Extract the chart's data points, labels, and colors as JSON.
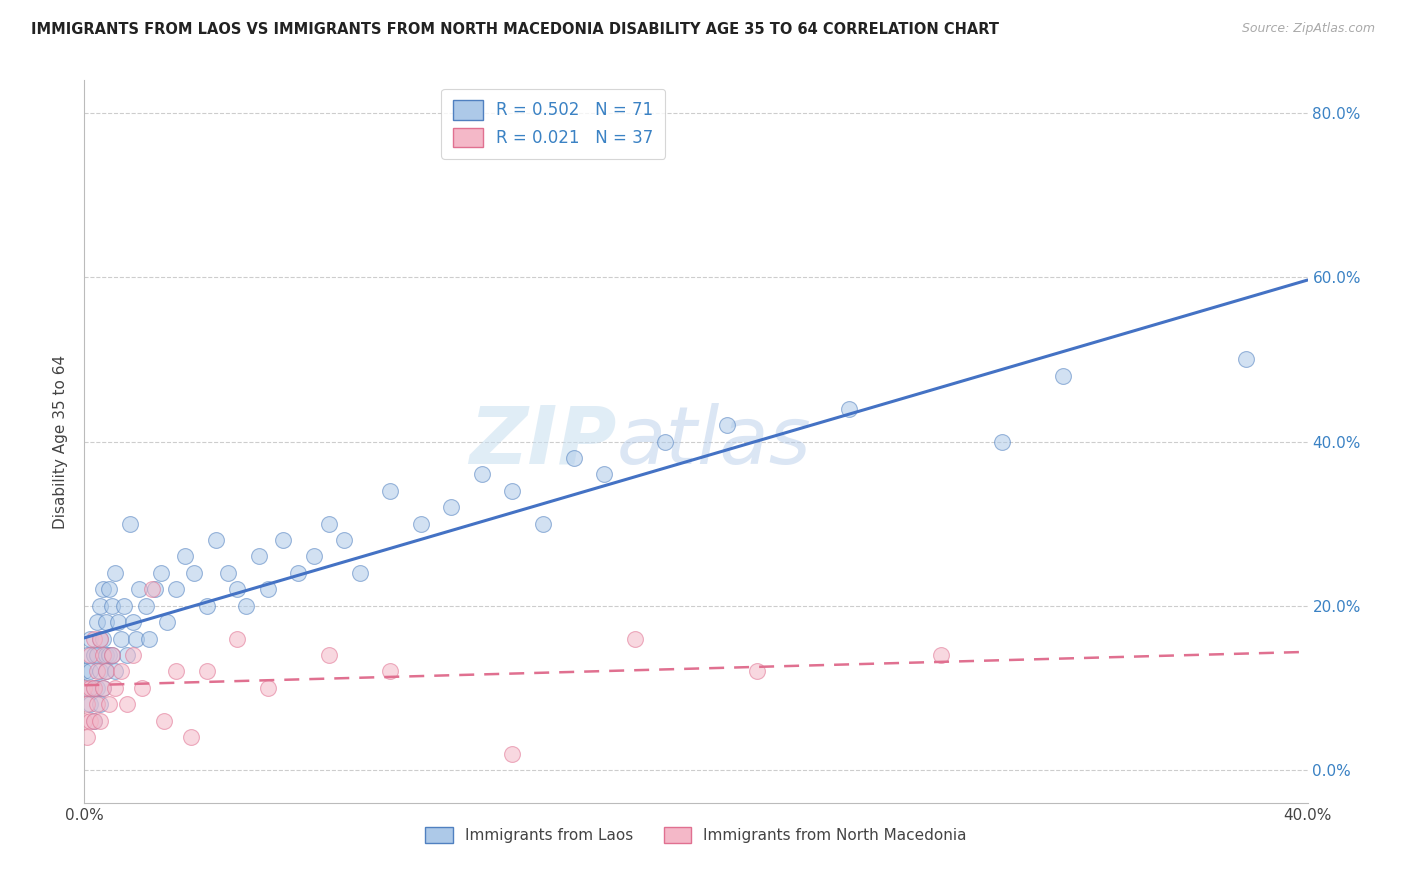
{
  "title": "IMMIGRANTS FROM LAOS VS IMMIGRANTS FROM NORTH MACEDONIA DISABILITY AGE 35 TO 64 CORRELATION CHART",
  "source": "Source: ZipAtlas.com",
  "ylabel": "Disability Age 35 to 64",
  "x_min": 0.0,
  "x_max": 0.4,
  "y_min": -0.04,
  "y_max": 0.84,
  "y_ticks": [
    0.0,
    0.2,
    0.4,
    0.6,
    0.8
  ],
  "y_tick_labels_right": [
    "0.0%",
    "20.0%",
    "40.0%",
    "60.0%",
    "80.0%"
  ],
  "grid_color": "#c8c8c8",
  "background_color": "#ffffff",
  "laos_fill_color": "#adc9e8",
  "laos_edge_color": "#5080c0",
  "laos_line_color": "#4472c4",
  "north_mac_fill_color": "#f4b8c8",
  "north_mac_edge_color": "#e07090",
  "north_mac_line_color": "#e07090",
  "R_laos": 0.502,
  "N_laos": 71,
  "R_north_mac": 0.021,
  "N_north_mac": 37,
  "watermark_text": "ZIP",
  "watermark_text2": "atlas",
  "laos_x": [
    0.0,
    0.001,
    0.001,
    0.002,
    0.002,
    0.002,
    0.003,
    0.003,
    0.003,
    0.004,
    0.004,
    0.004,
    0.005,
    0.005,
    0.005,
    0.005,
    0.006,
    0.006,
    0.006,
    0.007,
    0.007,
    0.007,
    0.008,
    0.008,
    0.009,
    0.009,
    0.01,
    0.01,
    0.011,
    0.012,
    0.013,
    0.014,
    0.015,
    0.016,
    0.017,
    0.018,
    0.02,
    0.021,
    0.023,
    0.025,
    0.027,
    0.03,
    0.033,
    0.036,
    0.04,
    0.043,
    0.047,
    0.05,
    0.053,
    0.057,
    0.06,
    0.065,
    0.07,
    0.075,
    0.08,
    0.085,
    0.09,
    0.1,
    0.11,
    0.12,
    0.13,
    0.14,
    0.15,
    0.16,
    0.17,
    0.19,
    0.21,
    0.25,
    0.3,
    0.32,
    0.38
  ],
  "laos_y": [
    0.12,
    0.1,
    0.14,
    0.08,
    0.12,
    0.16,
    0.06,
    0.1,
    0.14,
    0.1,
    0.14,
    0.18,
    0.08,
    0.12,
    0.16,
    0.2,
    0.1,
    0.16,
    0.22,
    0.12,
    0.14,
    0.18,
    0.14,
    0.22,
    0.14,
    0.2,
    0.12,
    0.24,
    0.18,
    0.16,
    0.2,
    0.14,
    0.3,
    0.18,
    0.16,
    0.22,
    0.2,
    0.16,
    0.22,
    0.24,
    0.18,
    0.22,
    0.26,
    0.24,
    0.2,
    0.28,
    0.24,
    0.22,
    0.2,
    0.26,
    0.22,
    0.28,
    0.24,
    0.26,
    0.3,
    0.28,
    0.24,
    0.34,
    0.3,
    0.32,
    0.36,
    0.34,
    0.3,
    0.38,
    0.36,
    0.4,
    0.42,
    0.44,
    0.4,
    0.48,
    0.5
  ],
  "north_mac_x": [
    0.0,
    0.0,
    0.001,
    0.001,
    0.002,
    0.002,
    0.002,
    0.003,
    0.003,
    0.003,
    0.004,
    0.004,
    0.005,
    0.005,
    0.006,
    0.006,
    0.007,
    0.008,
    0.009,
    0.01,
    0.012,
    0.014,
    0.016,
    0.019,
    0.022,
    0.026,
    0.03,
    0.035,
    0.04,
    0.05,
    0.06,
    0.08,
    0.1,
    0.14,
    0.18,
    0.22,
    0.28
  ],
  "north_mac_y": [
    0.06,
    0.1,
    0.04,
    0.08,
    0.06,
    0.1,
    0.14,
    0.06,
    0.1,
    0.16,
    0.08,
    0.12,
    0.06,
    0.16,
    0.1,
    0.14,
    0.12,
    0.08,
    0.14,
    0.1,
    0.12,
    0.08,
    0.14,
    0.1,
    0.22,
    0.06,
    0.12,
    0.04,
    0.12,
    0.16,
    0.1,
    0.14,
    0.12,
    0.02,
    0.16,
    0.12,
    0.14
  ]
}
